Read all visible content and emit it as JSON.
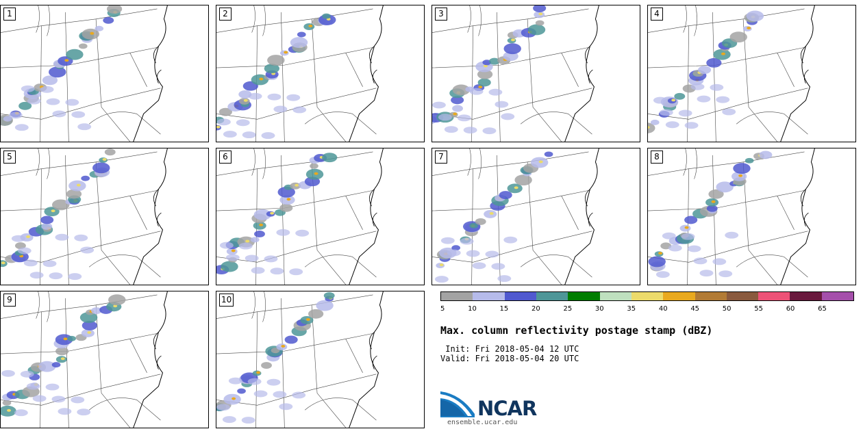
{
  "panels": [
    {
      "label": "1"
    },
    {
      "label": "2"
    },
    {
      "label": "3"
    },
    {
      "label": "4"
    },
    {
      "label": "5"
    },
    {
      "label": "6"
    },
    {
      "label": "7"
    },
    {
      "label": "8"
    },
    {
      "label": "9"
    },
    {
      "label": "10"
    }
  ],
  "colorbar": {
    "colors": [
      "#a3a3a3",
      "#b6bbea",
      "#5059cf",
      "#4e9698",
      "#007d00",
      "#bfe0bf",
      "#ecdb6b",
      "#e9a91e",
      "#b27b35",
      "#8a5a3e",
      "#ed5277",
      "#69193d",
      "#a54fab"
    ],
    "ticks": [
      "5",
      "10",
      "15",
      "20",
      "25",
      "30",
      "35",
      "40",
      "45",
      "50",
      "55",
      "60",
      "65"
    ]
  },
  "title": "Max. column reflectivity postage stamp (dBZ)",
  "init": " Init: Fri 2018-05-04 12 UTC",
  "valid": "Valid: Fri 2018-05-04 20 UTC",
  "logo": {
    "text": "NCAR",
    "url": "ensemble.ucar.edu"
  }
}
